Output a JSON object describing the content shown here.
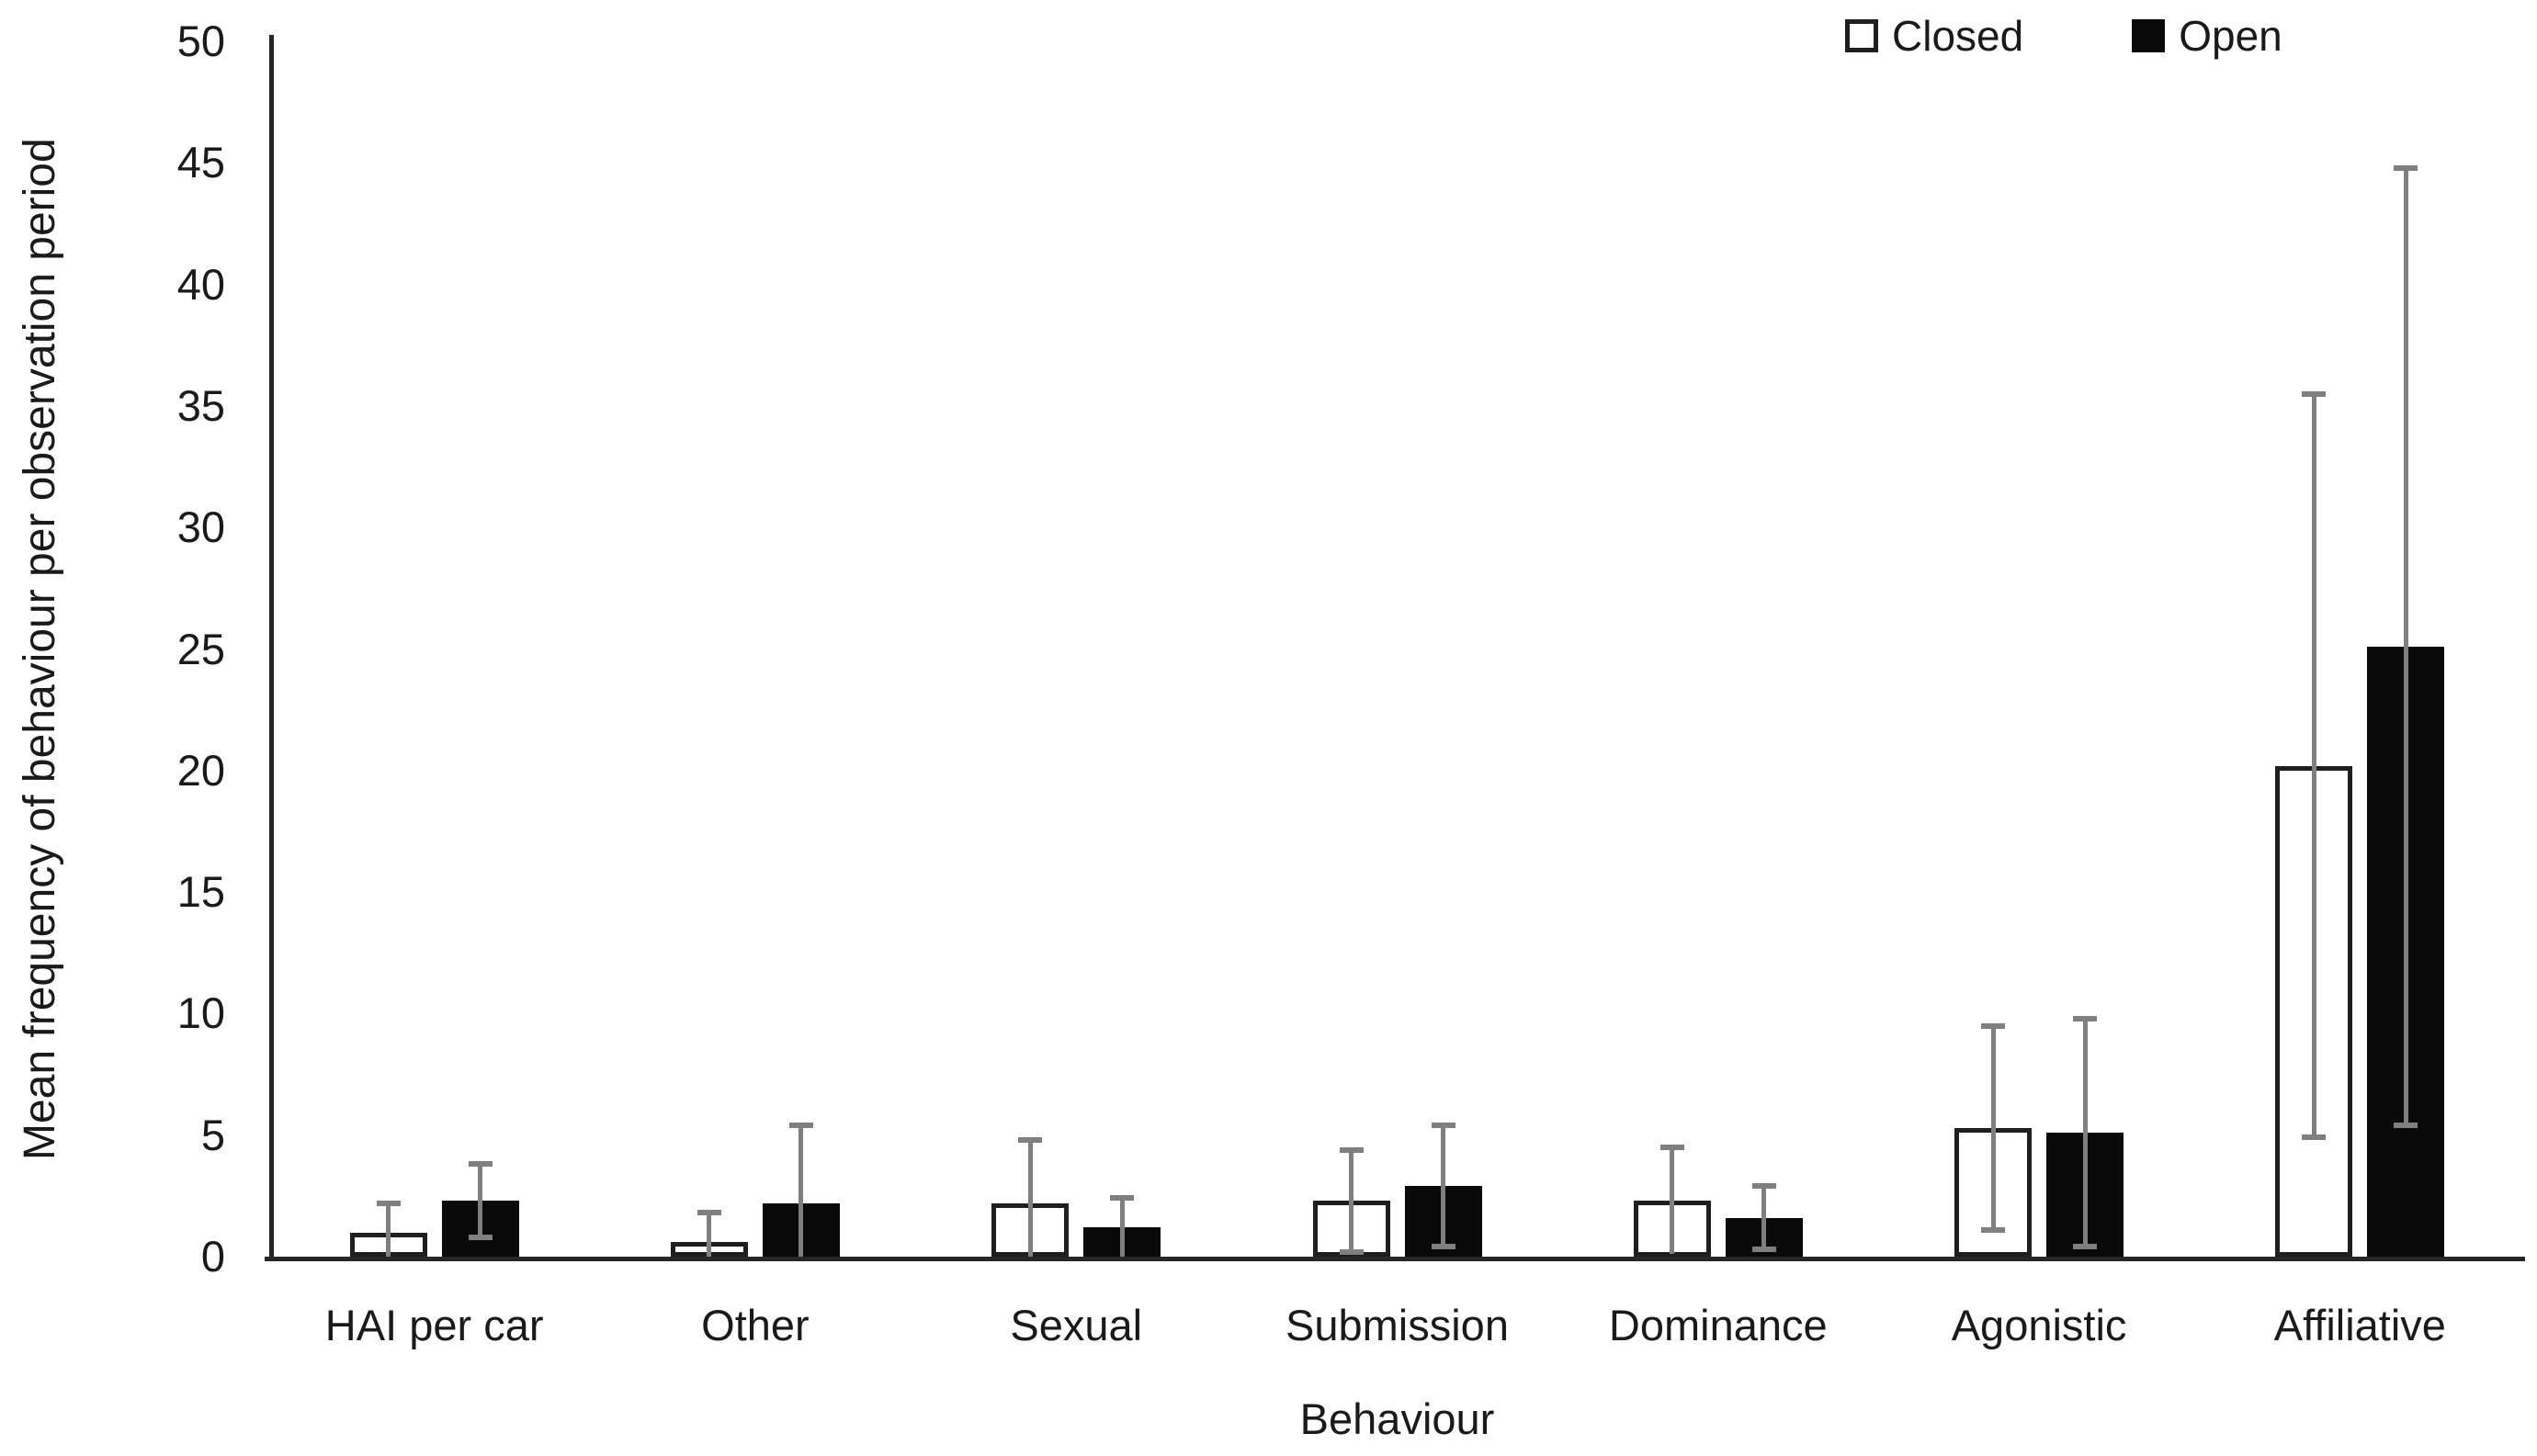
{
  "chart_data": {
    "type": "bar",
    "title": "",
    "xlabel": "Behaviour",
    "ylabel": "Mean frequency of behaviour per observation period",
    "ylim": [
      0,
      50
    ],
    "yticks": [
      0,
      5,
      10,
      15,
      20,
      25,
      30,
      35,
      40,
      45,
      50
    ],
    "grid": false,
    "legend_position": "top-right",
    "categories": [
      "HAI per car",
      "Other",
      "Sexual",
      "Submission",
      "Dominance",
      "Agonistic",
      "Affiliative"
    ],
    "series": [
      {
        "name": "Closed",
        "fill": "#ffffff",
        "border": "#1f1f1f",
        "values": [
          1.0,
          0.6,
          2.2,
          2.3,
          2.3,
          5.3,
          20.2
        ],
        "errors": [
          1.2,
          1.2,
          2.6,
          2.1,
          2.2,
          4.2,
          15.3
        ]
      },
      {
        "name": "Open",
        "fill": "#0a0a0a",
        "border": "#0a0a0a",
        "values": [
          2.3,
          2.2,
          1.2,
          2.9,
          1.6,
          5.1,
          25.1
        ],
        "errors": [
          1.5,
          3.2,
          1.2,
          2.5,
          1.3,
          4.7,
          19.7
        ]
      }
    ],
    "error_bar_color": "#7f7f7f",
    "axis_color": "#262626"
  }
}
